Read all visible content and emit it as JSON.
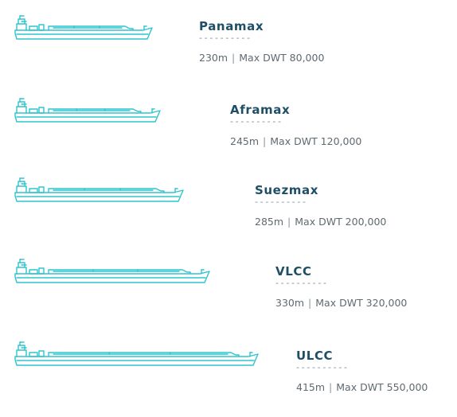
{
  "accent_color": "#2fc3cf",
  "title_color": "#1f4e66",
  "ships": [
    {
      "name": "Panamax",
      "length": "230m",
      "separator": "|",
      "dwt": "Max DWT 80,000",
      "divider": "----------",
      "ship_length_m": 230,
      "icon": "tanker-ship-icon"
    },
    {
      "name": "Aframax",
      "length": "245m",
      "separator": "|",
      "dwt": "Max DWT 120,000",
      "divider": "----------",
      "ship_length_m": 245,
      "icon": "tanker-ship-icon"
    },
    {
      "name": "Suezmax",
      "length": "285m",
      "separator": "|",
      "dwt": "Max DWT 200,000",
      "divider": "----------",
      "ship_length_m": 285,
      "icon": "tanker-ship-icon"
    },
    {
      "name": "VLCC",
      "length": "330m",
      "separator": "|",
      "dwt": "Max DWT 320,000",
      "divider": "----------",
      "ship_length_m": 330,
      "icon": "tanker-ship-icon"
    },
    {
      "name": "ULCC",
      "length": "415m",
      "separator": "|",
      "dwt": "Max DWT 550,000",
      "divider": "----------",
      "ship_length_m": 415,
      "icon": "tanker-ship-icon"
    }
  ]
}
